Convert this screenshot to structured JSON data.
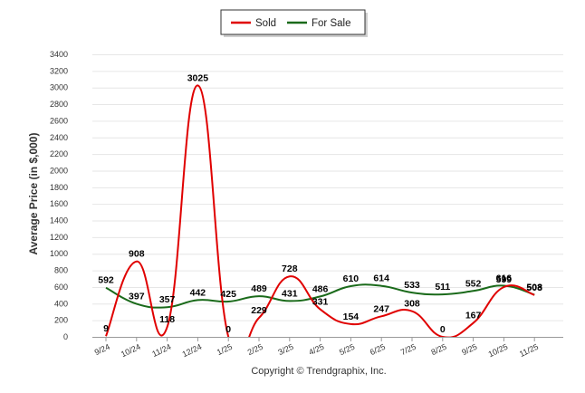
{
  "chart_data": {
    "type": "line",
    "title": "",
    "xlabel": "",
    "ylabel": "Average Price (in $,000)",
    "ylim": [
      0,
      3400
    ],
    "yticks": [
      0,
      200,
      400,
      600,
      800,
      1000,
      1200,
      1400,
      1600,
      1800,
      2000,
      2200,
      2400,
      2600,
      2800,
      3000,
      3200,
      3400
    ],
    "categories": [
      "9/24",
      "10/24",
      "11/24",
      "12/24",
      "1/25",
      "2/25",
      "3/25",
      "4/25",
      "5/25",
      "6/25",
      "7/25",
      "8/25",
      "9/25",
      "10/25",
      "11/25"
    ],
    "legend_position": "top",
    "series": [
      {
        "name": "Sold",
        "color": "#e00000",
        "values": [
          9,
          908,
          118,
          3025,
          0,
          229,
          728,
          331,
          154,
          247,
          308,
          0,
          167,
          599,
          503
        ],
        "labels": [
          "9",
          "908",
          "118",
          "3025",
          "0",
          "229",
          "728",
          "331",
          "154",
          "247",
          "308",
          "0",
          "167",
          "599",
          "503"
        ]
      },
      {
        "name": "For Sale",
        "color": "#1a6a1a",
        "values": [
          592,
          397,
          357,
          442,
          425,
          489,
          431,
          486,
          610,
          614,
          533,
          511,
          552,
          616,
          508
        ],
        "labels": [
          "592",
          "397",
          "357",
          "442",
          "425",
          "489",
          "431",
          "486",
          "610",
          "614",
          "533",
          "511",
          "552",
          "616",
          "508"
        ]
      }
    ],
    "footer": "Copyright © Trendgraphix, Inc."
  }
}
